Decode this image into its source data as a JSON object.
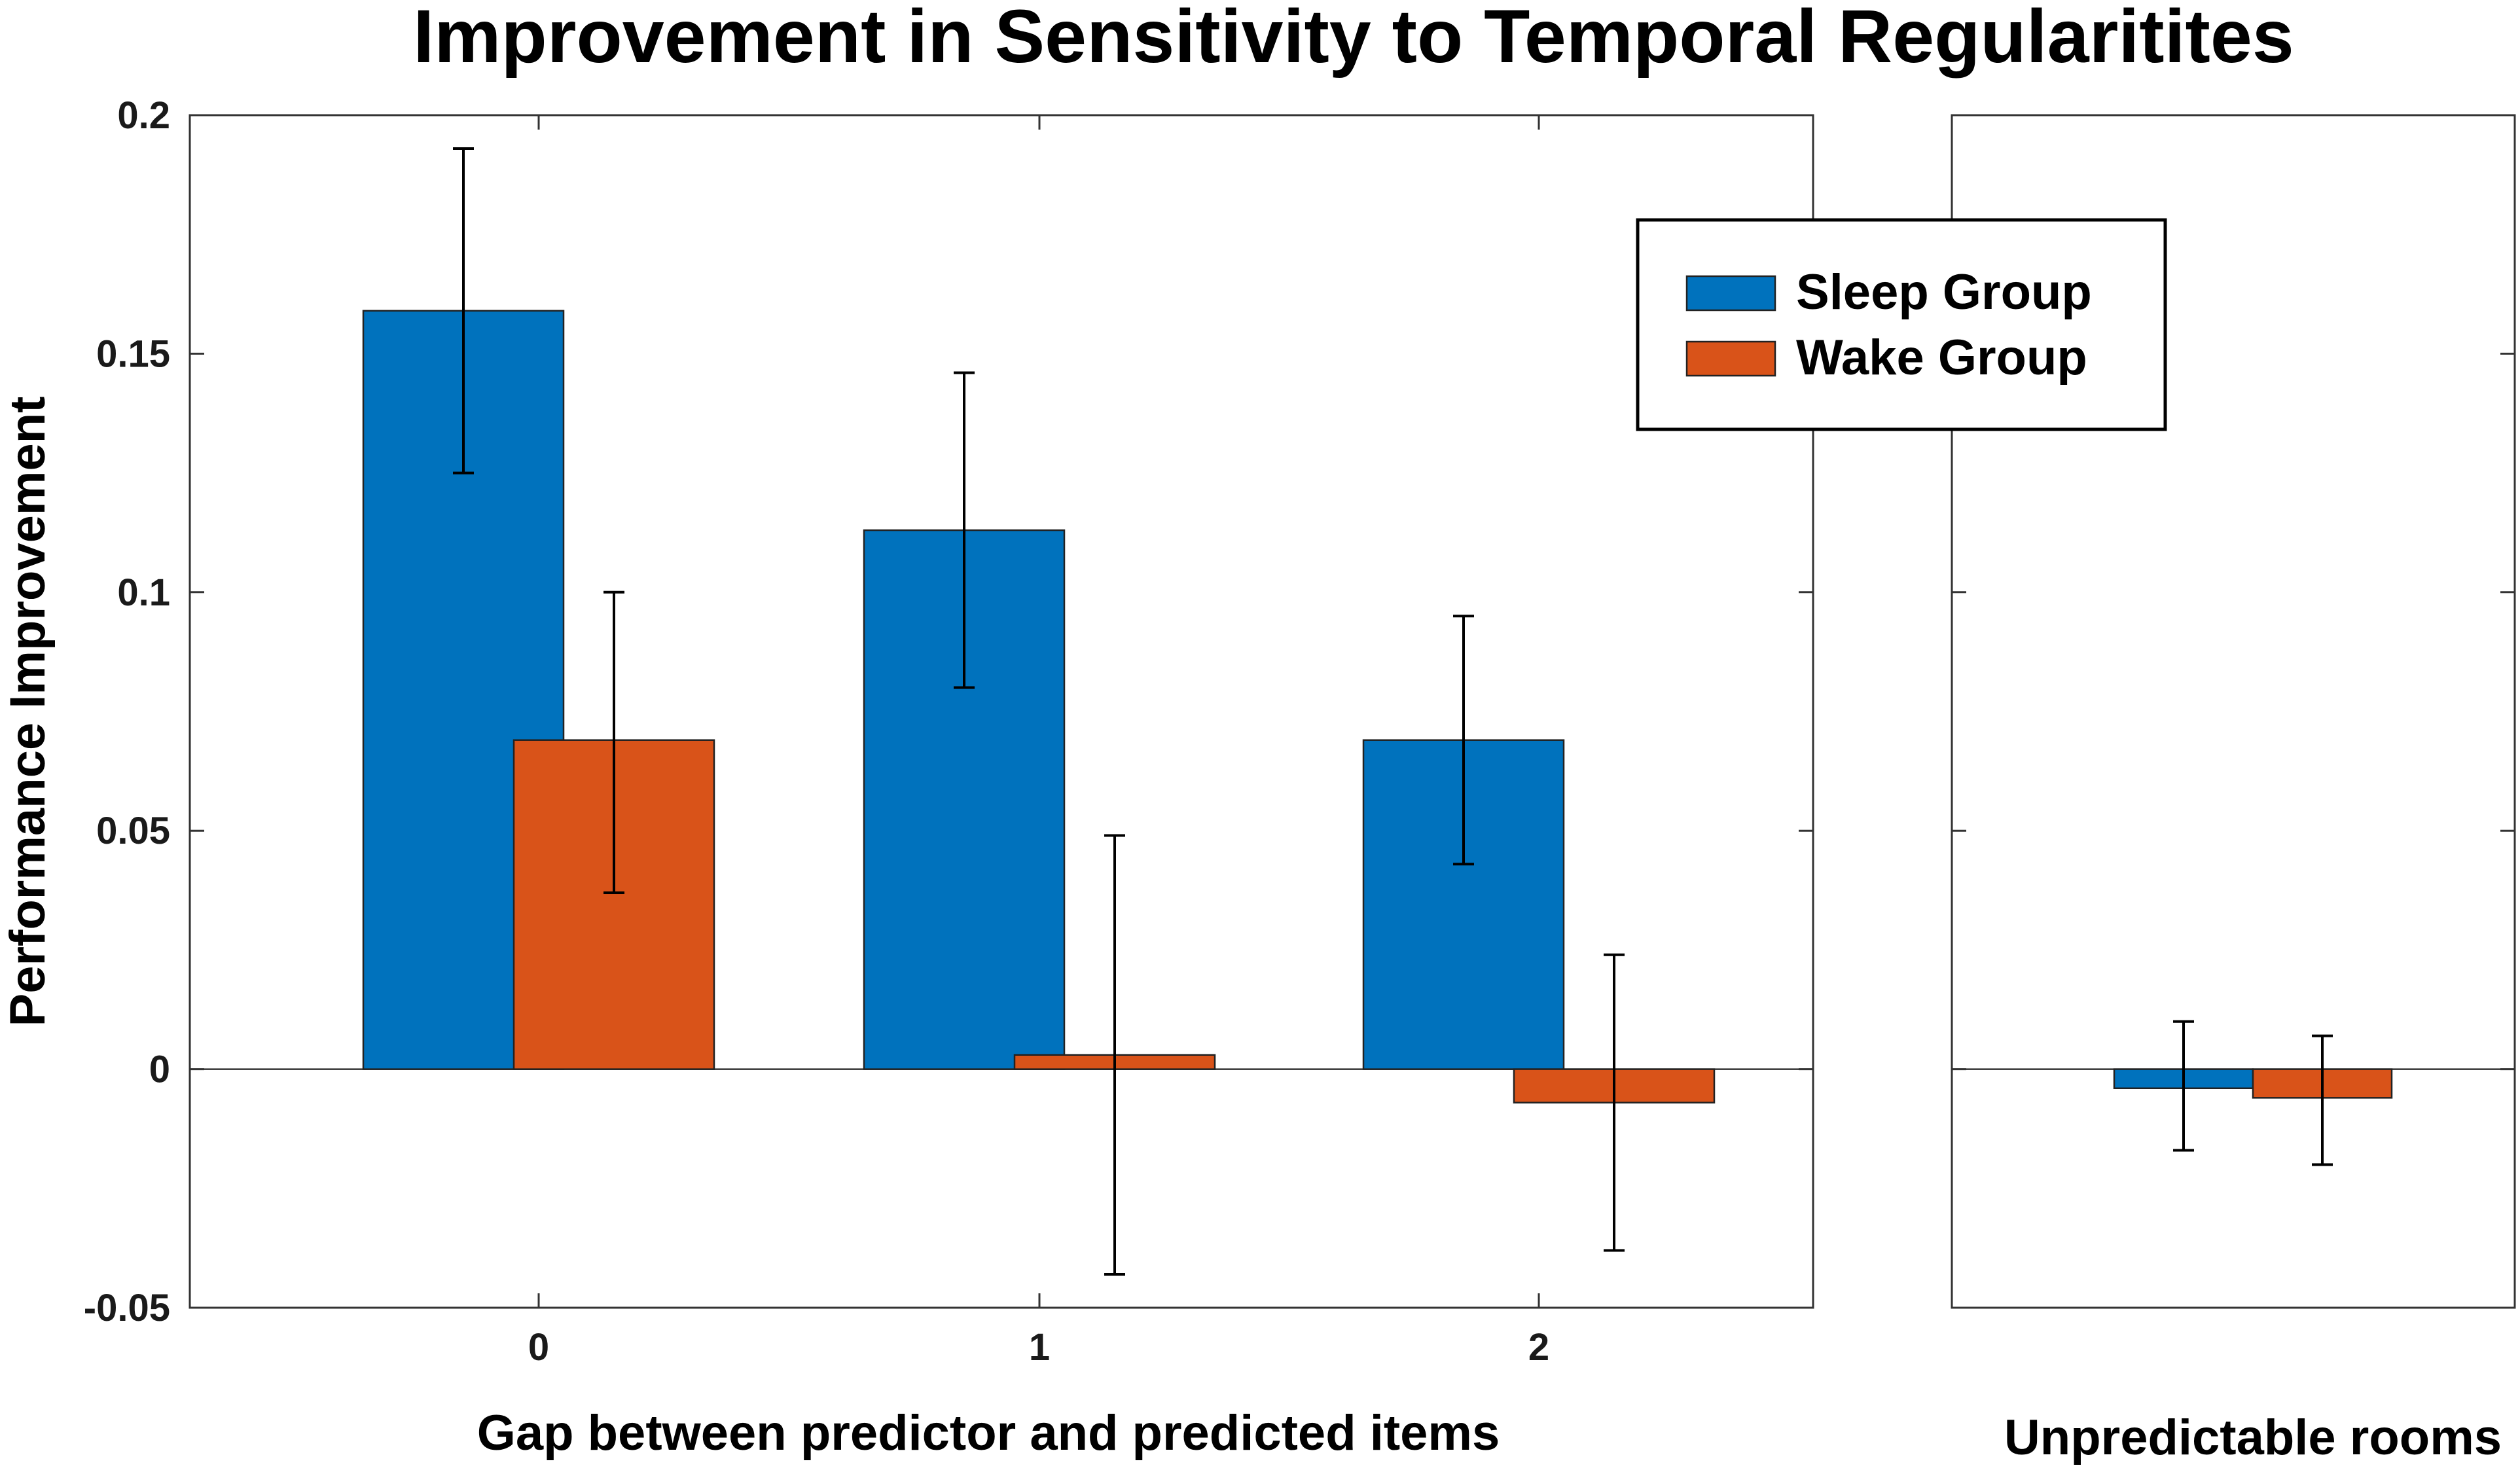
{
  "chart_data": {
    "type": "bar",
    "title": "Improvement in Sensitivity to Temporal Regularitites",
    "ylabel": "Performance Improvement",
    "ylim": [
      -0.05,
      0.2
    ],
    "yticks": [
      -0.05,
      0,
      0.05,
      0.1,
      0.15,
      0.2
    ],
    "ytick_labels": [
      "-0.05",
      "0",
      "0.05",
      "0.1",
      "0.15",
      "0.2"
    ],
    "legend": {
      "position": "top-right",
      "entries": [
        "Sleep Group",
        "Wake Group"
      ]
    },
    "colors": {
      "Sleep Group": "#0072BD",
      "Wake Group": "#D95319"
    },
    "panels": [
      {
        "name": "main",
        "xlabel": "Gap between predictor and predicted items",
        "categories": [
          "0",
          "1",
          "2"
        ],
        "series": [
          {
            "name": "Sleep Group",
            "values": [
              0.159,
              0.113,
              0.069
            ],
            "err_low": [
              0.125,
              0.08,
              0.043
            ],
            "err_high": [
              0.193,
              0.146,
              0.095
            ]
          },
          {
            "name": "Wake Group",
            "values": [
              0.069,
              0.003,
              -0.007
            ],
            "err_low": [
              0.037,
              -0.043,
              -0.038
            ],
            "err_high": [
              0.1,
              0.049,
              0.024
            ]
          }
        ]
      },
      {
        "name": "unpredictable",
        "xlabel": "Unpredictable rooms",
        "categories": [
          ""
        ],
        "series": [
          {
            "name": "Sleep Group",
            "values": [
              -0.004
            ],
            "err_low": [
              -0.017
            ],
            "err_high": [
              0.01
            ]
          },
          {
            "name": "Wake Group",
            "values": [
              -0.006
            ],
            "err_low": [
              -0.02
            ],
            "err_high": [
              0.007
            ]
          }
        ]
      }
    ]
  }
}
